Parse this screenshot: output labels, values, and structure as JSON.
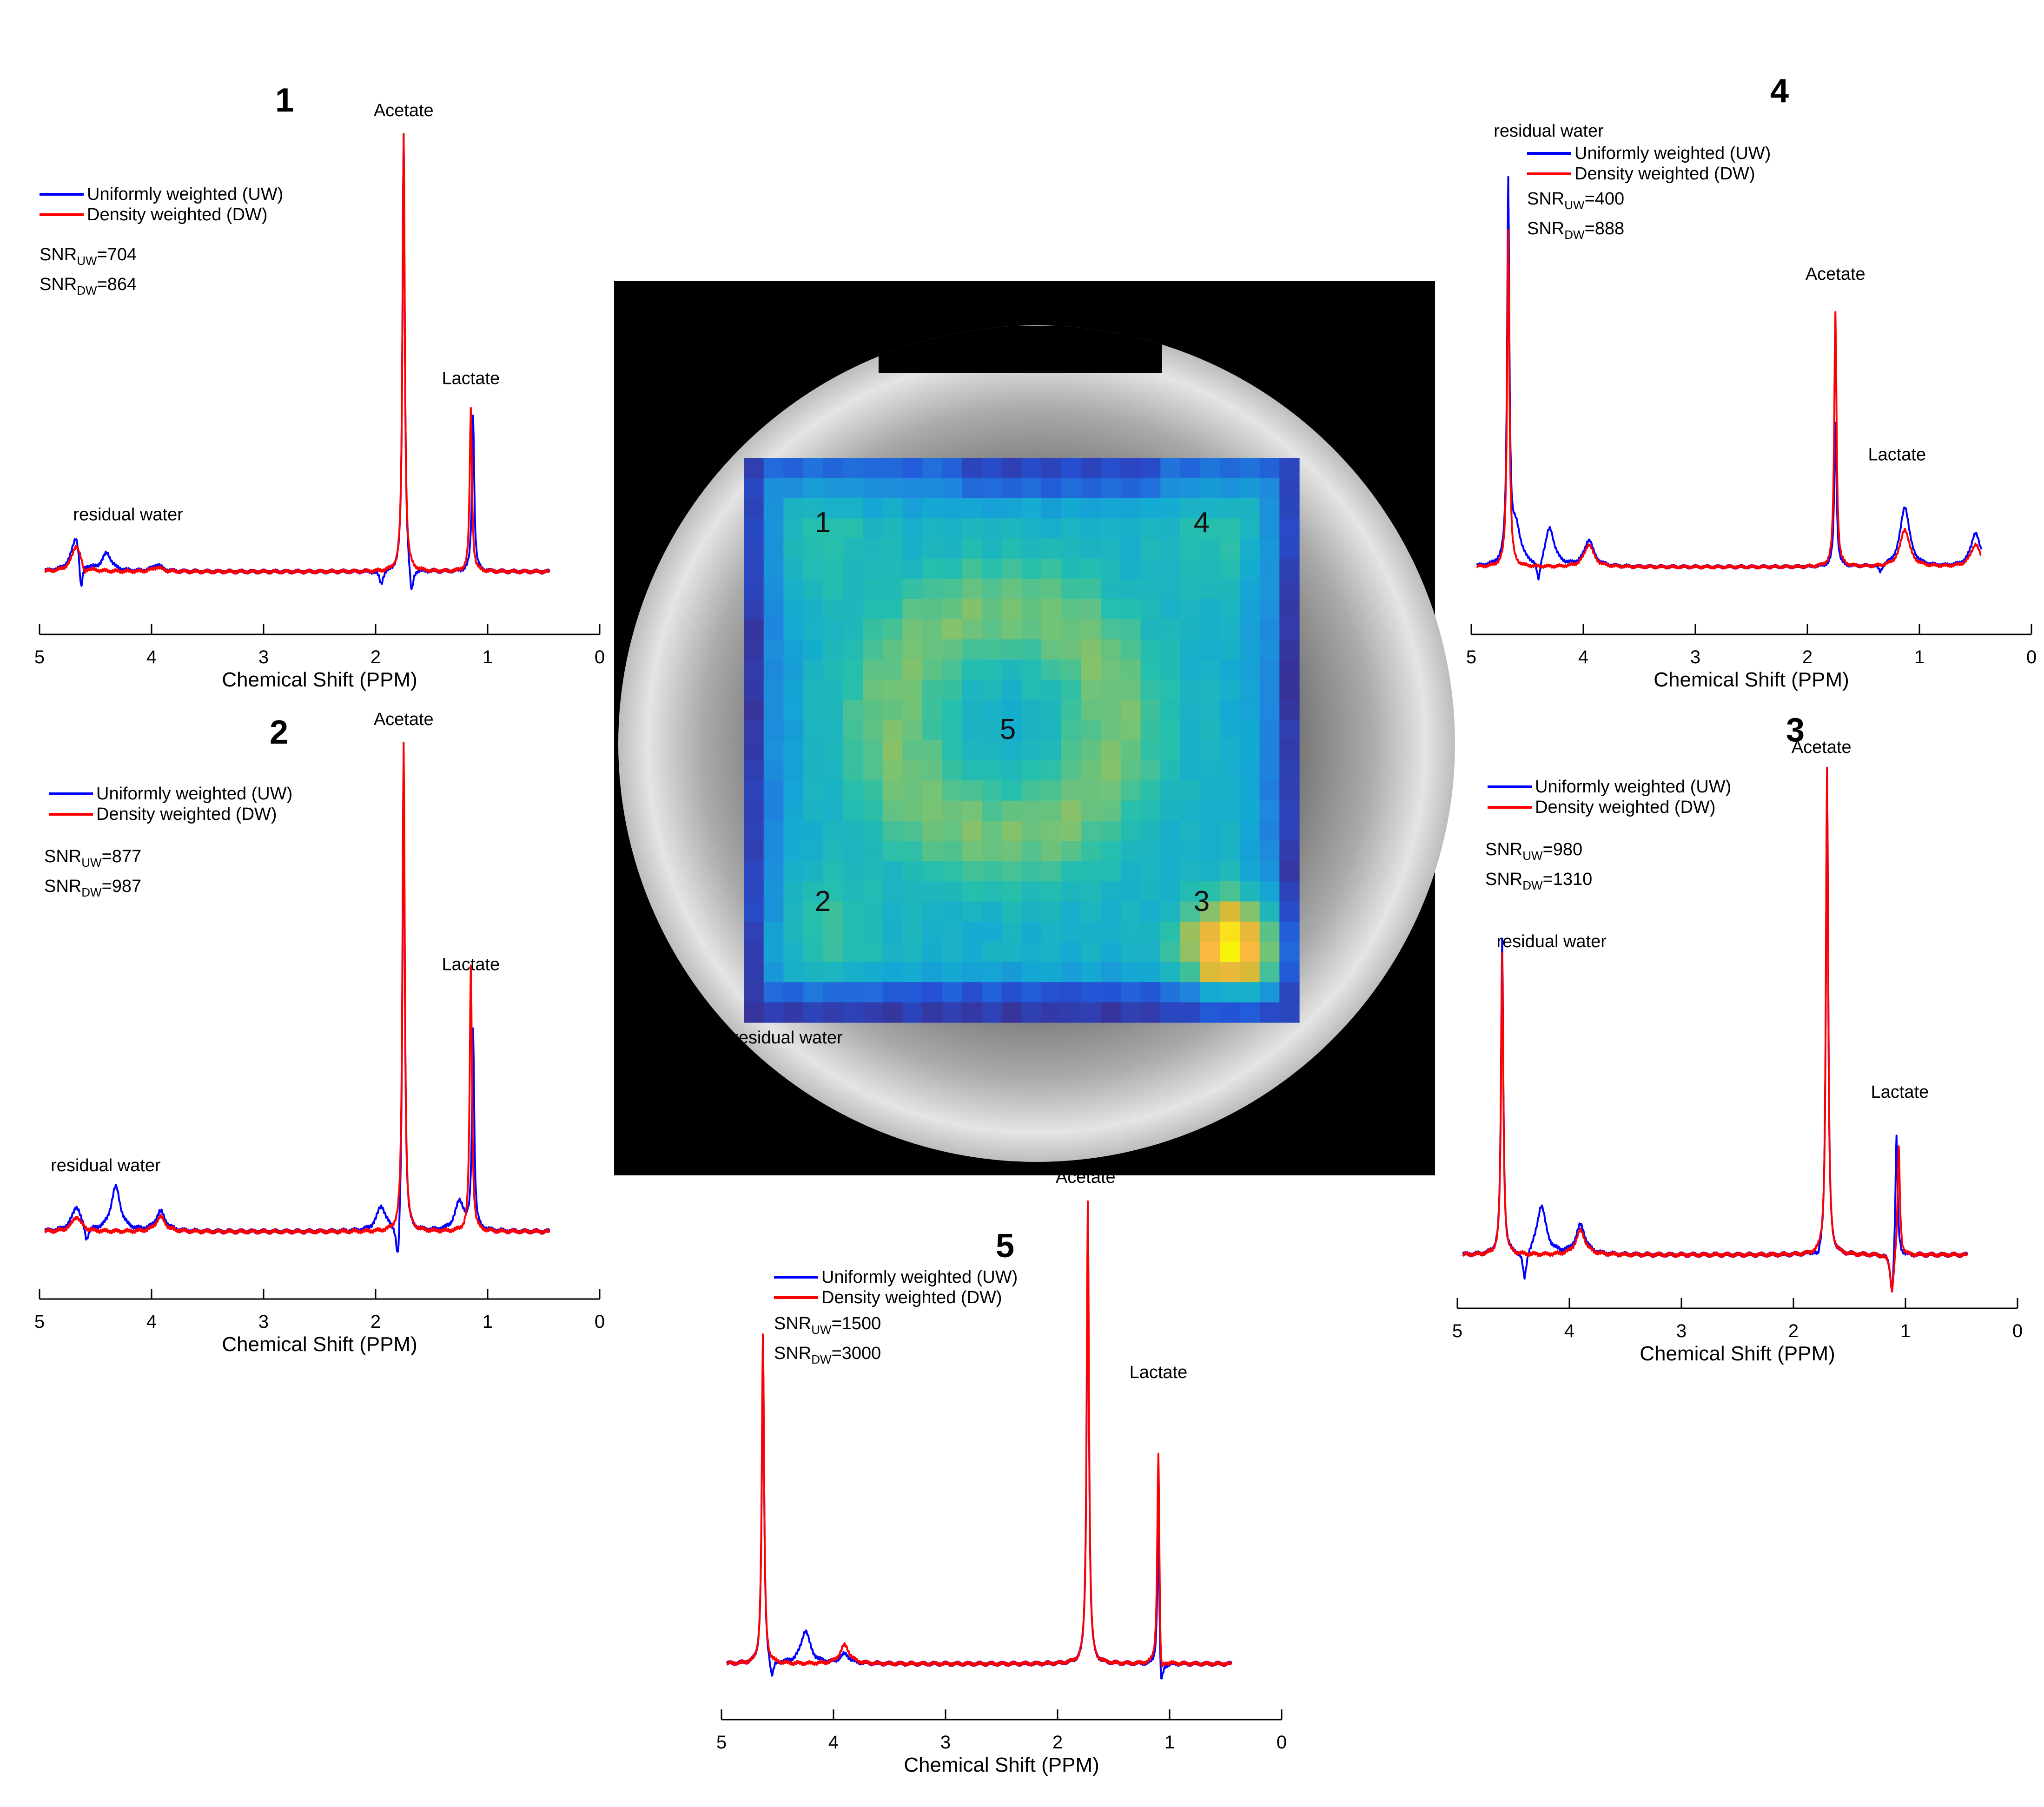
{
  "figure": {
    "center_image": {
      "description_labels": [
        "1",
        "2",
        "3",
        "4",
        "5"
      ],
      "grid_size": 28,
      "colormap": [
        "#3b2e90",
        "#2352d6",
        "#1f86de",
        "#13abd2",
        "#27bfab",
        "#79c373",
        "#d8b938",
        "#fcb83e",
        "#f9f20b"
      ]
    }
  },
  "chart_data": [
    {
      "id": "1",
      "type": "line",
      "title": "1",
      "xlabel": "Chemical Shift (PPM)",
      "xlim": [
        5,
        0
      ],
      "xticks": [
        "5",
        "4",
        "3",
        "2",
        "1",
        "0"
      ],
      "legend": [
        "Uniformly weighted (UW)",
        "Density weighted (DW)"
      ],
      "snr_uw": "704",
      "snr_dw": "864",
      "annotations": [
        {
          "text": "Acetate",
          "ppm": 1.75,
          "level": 1.0
        },
        {
          "text": "Lactate",
          "ppm": 1.15,
          "level": 0.39
        },
        {
          "text": "residual water",
          "ppm": 4.7,
          "level": 0.08
        }
      ],
      "series": [
        {
          "name": "Uniformly weighted (UW)",
          "color": "#0000ff",
          "peaks": [
            {
              "ppm": 4.67,
              "h": 0.09
            },
            {
              "ppm": 4.4,
              "h": 0.04
            },
            {
              "ppm": 3.95,
              "h": 0.015
            },
            {
              "ppm": 1.75,
              "h": 1.0
            },
            {
              "ppm": 1.13,
              "h": 0.36
            }
          ],
          "dips": [
            {
              "ppm": 4.63,
              "d": 0.09
            },
            {
              "ppm": 1.68,
              "d": 0.07
            },
            {
              "ppm": 1.95,
              "d": 0.03
            }
          ]
        },
        {
          "name": "Density weighted (DW)",
          "color": "#ff0000",
          "peaks": [
            {
              "ppm": 4.67,
              "h": 0.06
            },
            {
              "ppm": 3.95,
              "h": 0.01
            },
            {
              "ppm": 1.75,
              "h": 1.0
            },
            {
              "ppm": 1.15,
              "h": 0.37
            }
          ],
          "dips": [
            {
              "ppm": 4.6,
              "d": 0.02
            }
          ]
        }
      ]
    },
    {
      "id": "2",
      "type": "line",
      "title": "2",
      "xlabel": "Chemical Shift (PPM)",
      "xlim": [
        5,
        0
      ],
      "xticks": [
        "5",
        "4",
        "3",
        "2",
        "1",
        "0"
      ],
      "legend": [
        "Uniformly weighted (UW)",
        "Density weighted (DW)"
      ],
      "snr_uw": "877",
      "snr_dw": "987",
      "annotations": [
        {
          "text": "Acetate",
          "ppm": 1.75,
          "level": 1.0
        },
        {
          "text": "Lactate",
          "ppm": 1.15,
          "level": 0.5
        },
        {
          "text": "residual water",
          "ppm": 4.9,
          "level": 0.09
        }
      ],
      "series": [
        {
          "name": "Uniformly weighted (UW)",
          "color": "#0000ff",
          "peaks": [
            {
              "ppm": 4.67,
              "h": 0.05
            },
            {
              "ppm": 4.32,
              "h": 0.09
            },
            {
              "ppm": 3.92,
              "h": 0.04
            },
            {
              "ppm": 1.95,
              "h": 0.05
            },
            {
              "ppm": 1.75,
              "h": 0.96
            },
            {
              "ppm": 1.25,
              "h": 0.06
            },
            {
              "ppm": 1.13,
              "h": 0.41
            }
          ],
          "dips": [
            {
              "ppm": 4.58,
              "d": 0.03
            },
            {
              "ppm": 1.8,
              "d": 0.1
            }
          ]
        },
        {
          "name": "Density weighted (DW)",
          "color": "#ff0000",
          "peaks": [
            {
              "ppm": 4.67,
              "h": 0.03
            },
            {
              "ppm": 3.92,
              "h": 0.03
            },
            {
              "ppm": 1.75,
              "h": 1.0
            },
            {
              "ppm": 1.15,
              "h": 0.54
            }
          ],
          "dips": []
        }
      ]
    },
    {
      "id": "3",
      "type": "line",
      "title": "3",
      "xlabel": "Chemical Shift (PPM)",
      "xlim": [
        5,
        0
      ],
      "xticks": [
        "5",
        "4",
        "3",
        "2",
        "1",
        "0"
      ],
      "legend": [
        "Uniformly weighted (UW)",
        "Density weighted (DW)"
      ],
      "snr_uw": "980",
      "snr_dw": "1310",
      "annotations": [
        {
          "text": "Acetate",
          "ppm": 1.75,
          "level": 1.0
        },
        {
          "text": "Lactate",
          "ppm": 1.05,
          "level": 0.29
        },
        {
          "text": "residual water",
          "ppm": 4.65,
          "level": 0.6
        }
      ],
      "series": [
        {
          "name": "Uniformly weighted (UW)",
          "color": "#0000ff",
          "peaks": [
            {
              "ppm": 4.6,
              "h": 0.65
            },
            {
              "ppm": 4.25,
              "h": 0.1
            },
            {
              "ppm": 3.9,
              "h": 0.06
            },
            {
              "ppm": 1.7,
              "h": 1.0
            },
            {
              "ppm": 1.08,
              "h": 0.26
            }
          ],
          "dips": [
            {
              "ppm": 4.4,
              "d": 0.06
            },
            {
              "ppm": 1.12,
              "d": 0.09
            },
            {
              "ppm": 1.78,
              "d": 0.02
            }
          ]
        },
        {
          "name": "Density weighted (DW)",
          "color": "#ff0000",
          "peaks": [
            {
              "ppm": 4.6,
              "h": 0.62
            },
            {
              "ppm": 3.9,
              "h": 0.05
            },
            {
              "ppm": 1.7,
              "h": 1.0
            },
            {
              "ppm": 1.06,
              "h": 0.23
            }
          ],
          "dips": [
            {
              "ppm": 1.12,
              "d": 0.08
            }
          ]
        }
      ]
    },
    {
      "id": "4",
      "type": "line",
      "title": "4",
      "xlabel": "Chemical Shift (PPM)",
      "xlim": [
        5,
        0
      ],
      "xticks": [
        "5",
        "4",
        "3",
        "2",
        "1",
        "0"
      ],
      "legend": [
        "Uniformly weighted (UW)",
        "Density weighted (DW)"
      ],
      "snr_uw": "400",
      "snr_dw": "888",
      "annotations": [
        {
          "text": "Acetate",
          "ppm": 1.75,
          "level": 0.72
        },
        {
          "text": "Lactate",
          "ppm": 1.2,
          "level": 0.24
        },
        {
          "text": "residual water",
          "ppm": 4.8,
          "level": 1.1
        }
      ],
      "series": [
        {
          "name": "Uniformly weighted (UW)",
          "color": "#0000ff",
          "peaks": [
            {
              "ppm": 4.67,
              "h": 1.0
            },
            {
              "ppm": 4.6,
              "h": 0.1
            },
            {
              "ppm": 4.3,
              "h": 0.1
            },
            {
              "ppm": 3.95,
              "h": 0.07
            },
            {
              "ppm": 1.75,
              "h": 0.38
            },
            {
              "ppm": 1.13,
              "h": 0.16
            },
            {
              "ppm": 0.5,
              "h": 0.09
            }
          ],
          "dips": [
            {
              "ppm": 4.4,
              "d": 0.06
            },
            {
              "ppm": 1.35,
              "d": 0.02
            }
          ]
        },
        {
          "name": "Density weighted (DW)",
          "color": "#ff0000",
          "peaks": [
            {
              "ppm": 4.67,
              "h": 0.9
            },
            {
              "ppm": 3.95,
              "h": 0.06
            },
            {
              "ppm": 1.75,
              "h": 0.68
            },
            {
              "ppm": 1.13,
              "h": 0.1
            },
            {
              "ppm": 0.5,
              "h": 0.06
            }
          ],
          "dips": []
        }
      ]
    },
    {
      "id": "5",
      "type": "line",
      "title": "5",
      "xlabel": "Chemical Shift (PPM)",
      "xlim": [
        5,
        0
      ],
      "xticks": [
        "5",
        "4",
        "3",
        "2",
        "1",
        "0"
      ],
      "legend": [
        "Uniformly weighted (UW)",
        "Density weighted (DW)"
      ],
      "snr_uw": "1500",
      "snr_dw": "3000",
      "annotations": [
        {
          "text": "Acetate",
          "ppm": 1.75,
          "level": 1.0
        },
        {
          "text": "Lactate",
          "ppm": 1.1,
          "level": 0.58
        },
        {
          "text": "residual water",
          "ppm": 4.9,
          "level": 1.3
        }
      ],
      "series": [
        {
          "name": "Uniformly weighted (UW)",
          "color": "#0000ff",
          "peaks": [
            {
              "ppm": 4.63,
              "h": 0.7
            },
            {
              "ppm": 4.25,
              "h": 0.07
            },
            {
              "ppm": 3.9,
              "h": 0.02
            },
            {
              "ppm": 1.73,
              "h": 0.96
            },
            {
              "ppm": 1.1,
              "h": 0.34
            }
          ],
          "dips": [
            {
              "ppm": 4.55,
              "d": 0.04
            },
            {
              "ppm": 1.08,
              "d": 0.1
            }
          ]
        },
        {
          "name": "Density weighted (DW)",
          "color": "#ff0000",
          "peaks": [
            {
              "ppm": 4.63,
              "h": 0.71
            },
            {
              "ppm": 3.9,
              "h": 0.04
            },
            {
              "ppm": 1.73,
              "h": 1.0
            },
            {
              "ppm": 1.1,
              "h": 0.5
            }
          ],
          "dips": [
            {
              "ppm": 1.08,
              "d": 0.09
            }
          ]
        }
      ]
    }
  ]
}
